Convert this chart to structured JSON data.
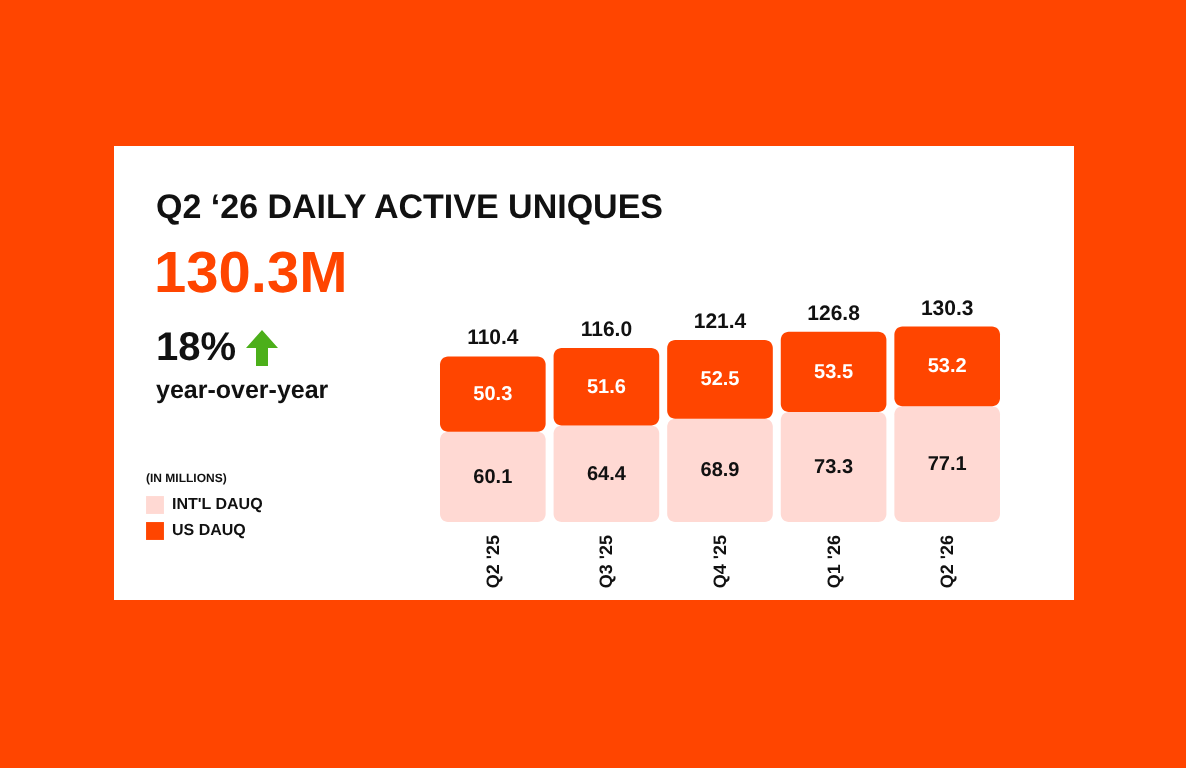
{
  "chart_data": {
    "type": "bar",
    "title": "Q2 ‘26 DAILY ACTIVE UNIQUES",
    "stacked": true,
    "data_labels": true,
    "legend": "left",
    "legend_title": "(IN MILLIONS)",
    "annotations": [
      "130.3M",
      "18%",
      "year-over-year"
    ],
    "categories": [
      "Q2 '25",
      "Q3 '25",
      "Q4 '25",
      "Q1 '26",
      "Q2 '26"
    ],
    "series": [
      {
        "name": "INT'L DAUQ",
        "color": "#ffd9d3",
        "values": [
          60.1,
          64.4,
          68.9,
          73.3,
          77.1
        ]
      },
      {
        "name": "US DAUQ",
        "color": "#ff4500",
        "values": [
          50.3,
          51.6,
          52.5,
          53.5,
          53.2
        ]
      }
    ],
    "totals": [
      "110.4",
      "116.0",
      "121.4",
      "126.8",
      "130.3"
    ]
  }
}
